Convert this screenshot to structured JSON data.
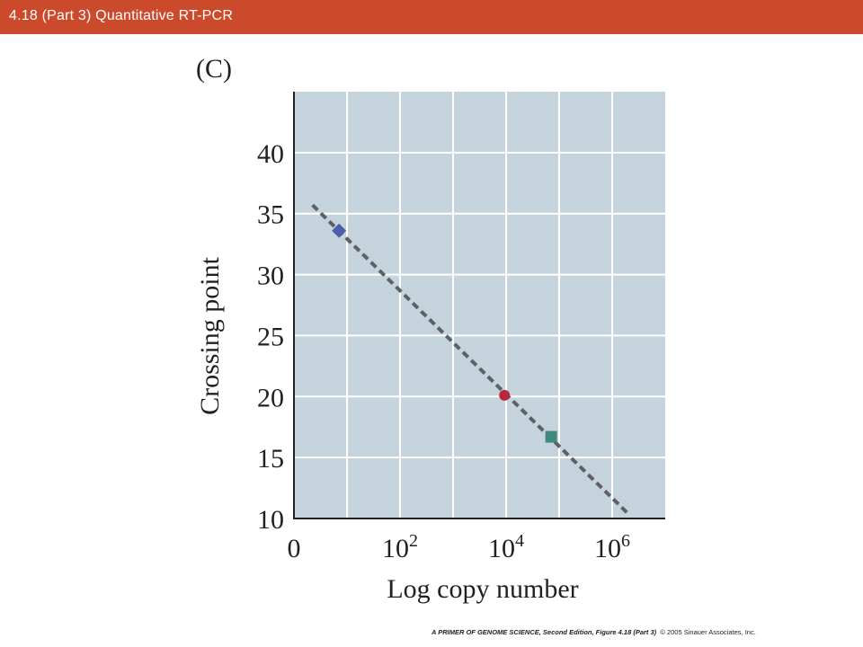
{
  "header": {
    "title": "4.18 (Part 3)  Quantitative RT-PCR"
  },
  "figure": {
    "panel_label": "(C)"
  },
  "footer": {
    "book": "A PRIMER OF GENOME SCIENCE, Second Edition, Figure 4.18 (Part 3)",
    "copyright": "© 2005 Sinauer Associates, Inc."
  },
  "colors": {
    "title_bar": "#cc4a2c",
    "plot_background": "#c5d3dc",
    "grid": "#ffffff",
    "fit_line": "#5f5f66",
    "diamond": "#4a5fa8",
    "circle": "#b8283a",
    "square": "#3f8a7c"
  },
  "chart_data": {
    "type": "scatter",
    "xlabel": "Log copy number",
    "ylabel": "Crossing point",
    "xlim": [
      0,
      7
    ],
    "ylim": [
      10,
      45
    ],
    "x_ticks": [
      {
        "value": 0,
        "base": "0",
        "exp": ""
      },
      {
        "value": 2,
        "base": "10",
        "exp": "2"
      },
      {
        "value": 4,
        "base": "10",
        "exp": "4"
      },
      {
        "value": 6,
        "base": "10",
        "exp": "6"
      }
    ],
    "x_grid": [
      1,
      2,
      3,
      4,
      5,
      6
    ],
    "y_ticks": [
      10,
      15,
      20,
      25,
      30,
      35,
      40
    ],
    "y_grid": [
      15,
      20,
      25,
      30,
      35,
      40
    ],
    "grid": true,
    "points": [
      {
        "x": 0.85,
        "y": 33.6,
        "marker": "diamond",
        "color": "#4a5fa8"
      },
      {
        "x": 3.97,
        "y": 20.1,
        "marker": "circle",
        "color": "#b8283a"
      },
      {
        "x": 4.85,
        "y": 16.7,
        "marker": "square",
        "color": "#3f8a7c"
      }
    ],
    "fit_line": {
      "x1": 0.35,
      "y1": 35.7,
      "x2": 6.3,
      "y2": 10.4,
      "style": "dashed"
    }
  }
}
